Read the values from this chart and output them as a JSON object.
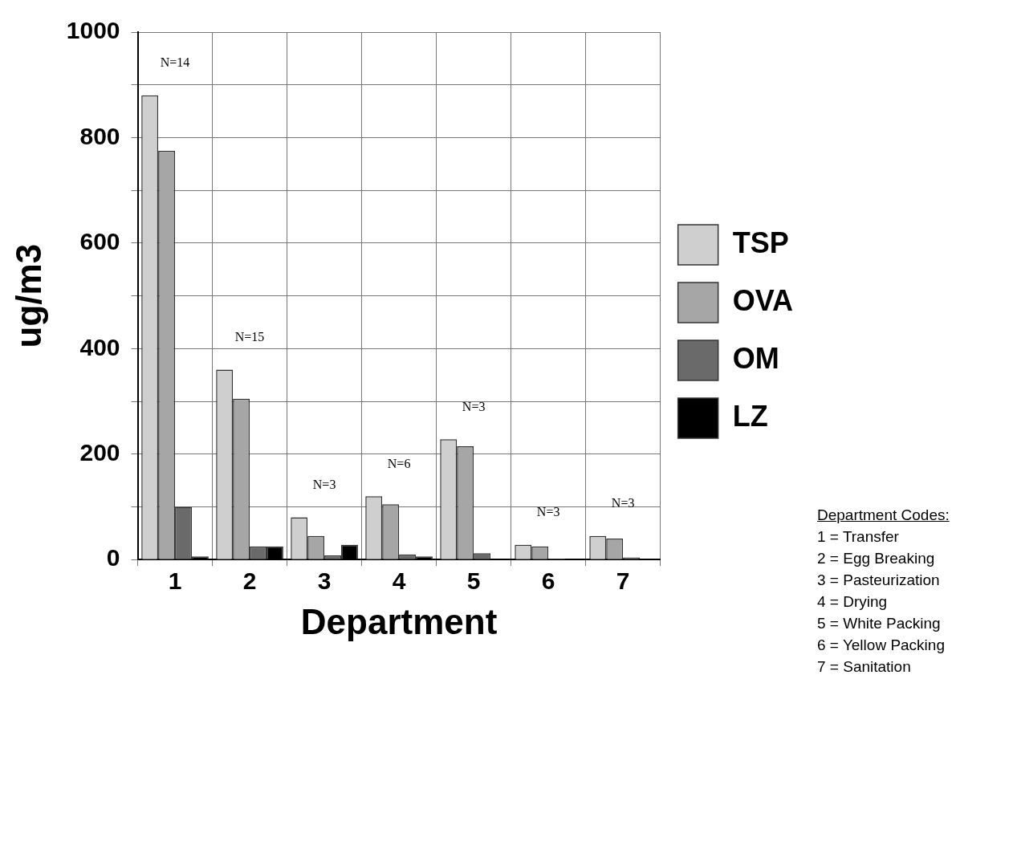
{
  "chart_data": {
    "type": "bar",
    "xlabel": "Department",
    "ylabel": "ug/m3",
    "categories": [
      "1",
      "2",
      "3",
      "4",
      "5",
      "6",
      "7"
    ],
    "series": [
      {
        "name": "TSP",
        "color": "#cfcfcf",
        "values": [
          880,
          360,
          80,
          120,
          228,
          28,
          45
        ]
      },
      {
        "name": "OVA",
        "color": "#a6a6a6",
        "values": [
          775,
          305,
          45,
          105,
          215,
          25,
          40
        ]
      },
      {
        "name": "OM",
        "color": "#6a6a6a",
        "values": [
          100,
          25,
          8,
          10,
          12,
          2,
          4
        ]
      },
      {
        "name": "LZ",
        "color": "#000000",
        "values": [
          6,
          25,
          28,
          6,
          null,
          null,
          null
        ]
      }
    ],
    "ylim": [
      0,
      1000
    ],
    "yticks": [
      0,
      {
        "value": 100,
        "label": null
      },
      200,
      {
        "value": 300,
        "label": null
      },
      400,
      {
        "value": 500,
        "label": null
      },
      600,
      {
        "value": 700,
        "label": null
      },
      800,
      {
        "value": 900,
        "label": null
      },
      1000
    ],
    "grid": true,
    "legend": "right",
    "annotations": [
      "N=14",
      "N=15",
      "N=3",
      "N=6",
      "N=3",
      "N=3",
      "N=3",
      "Department Codes:",
      "1 = Transfer",
      "2 = Egg Breaking",
      "3 = Pasteurization",
      "4 = Drying",
      "5 = White Packing",
      "6 = Yellow Packing",
      "7 = Sanitation"
    ]
  }
}
